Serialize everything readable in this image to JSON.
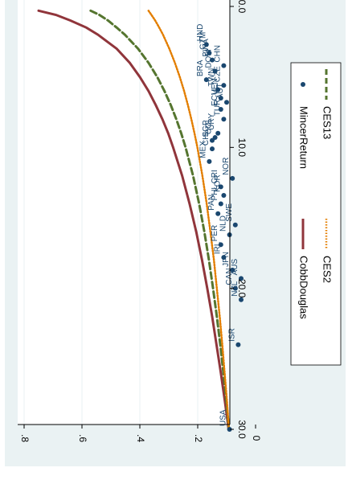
{
  "chart_data": {
    "type": "scatter",
    "orientation": "rotated-90-clockwise",
    "title": "",
    "xlabel": "",
    "ylabel": "",
    "xlim": [
      0,
      31
    ],
    "ylim": [
      0,
      0.83
    ],
    "x_ticks": [
      "0.0",
      "10.0",
      "20.0",
      "30.0"
    ],
    "y_ticks": [
      "0",
      ".2",
      ".4",
      ".6",
      ".8"
    ],
    "x_tick_values": [
      0,
      10,
      20,
      30
    ],
    "y_tick_values": [
      0,
      0.2,
      0.4,
      0.6,
      0.8
    ],
    "grid": "horizontal-gridlines",
    "legend_position": "right",
    "legend": [
      {
        "label": "MincerReturn",
        "style": "dot"
      },
      {
        "label": "CobbDouglas",
        "style": "solid"
      },
      {
        "label": "CES13",
        "style": "dashed"
      },
      {
        "label": "CES2",
        "style": "dotted"
      }
    ],
    "colors": {
      "outer_bg": "#eaf2f3",
      "plot_bg": "#ffffff",
      "mincer": "#1a476f",
      "cobbdouglas": "#90353b",
      "ces13": "#55752f",
      "ces2": "#e37e00",
      "grid": "#eaf2f3",
      "axis": "#000000"
    },
    "series": [
      {
        "name": "MincerReturn",
        "kind": "scatter",
        "points": [
          {
            "x": 2.7,
            "y": 0.17,
            "label": "HND"
          },
          {
            "x": 3.3,
            "y": 0.16,
            "label": "GTM"
          },
          {
            "x": 3.8,
            "y": 0.15,
            "label": "BWA"
          },
          {
            "x": 4.6,
            "y": 0.14,
            "label": "DOM"
          },
          {
            "x": 5.2,
            "y": 0.17,
            "label": "BRA"
          },
          {
            "x": 5.6,
            "y": 0.11,
            "label": "CZE"
          },
          {
            "x": 4.2,
            "y": 0.11,
            "label": "CHN"
          },
          {
            "x": 5.9,
            "y": 0.13,
            "label": "TWN"
          },
          {
            "x": 6.8,
            "y": 0.1,
            "label": "AUT"
          },
          {
            "x": 6.5,
            "y": 0.12,
            "label": "VEN"
          },
          {
            "x": 7.3,
            "y": 0.12,
            "label": "ECU"
          },
          {
            "x": 8.0,
            "y": 0.11,
            "label": "TUR"
          },
          {
            "x": 9.0,
            "y": 0.13,
            "label": "URY"
          },
          {
            "x": 9.3,
            "y": 0.14,
            "label": "COL"
          },
          {
            "x": 9.5,
            "y": 0.15,
            "label": "SGP"
          },
          {
            "x": 10.1,
            "y": 0.15,
            "label": "CHL"
          },
          {
            "x": 11.0,
            "y": 0.16,
            "label": "MEX"
          },
          {
            "x": 12.2,
            "y": 0.08,
            "label": "NOR"
          },
          {
            "x": 12.8,
            "y": 0.12,
            "label": "CRI"
          },
          {
            "x": 13.4,
            "y": 0.11,
            "label": "KOR"
          },
          {
            "x": 14.0,
            "y": 0.12,
            "label": "PHL"
          },
          {
            "x": 14.7,
            "y": 0.13,
            "label": "PAN"
          },
          {
            "x": 15.5,
            "y": 0.07,
            "label": "SWE"
          },
          {
            "x": 16.2,
            "y": 0.09,
            "label": "NLD"
          },
          {
            "x": 16.9,
            "y": 0.12,
            "label": "PER"
          },
          {
            "x": 17.8,
            "y": 0.11,
            "label": "IRL"
          },
          {
            "x": 18.7,
            "y": 0.08,
            "label": "JPN"
          },
          {
            "x": 19.3,
            "y": 0.05,
            "label": "AUS"
          },
          {
            "x": 20.0,
            "y": 0.07,
            "label": "CAN"
          },
          {
            "x": 20.8,
            "y": 0.05,
            "label": "NZL"
          },
          {
            "x": 24.0,
            "y": 0.06,
            "label": "ISR"
          },
          {
            "x": 30.0,
            "y": 0.09,
            "label": "USA"
          }
        ]
      },
      {
        "name": "CobbDouglas",
        "kind": "line",
        "x": [
          0.3,
          0.6,
          1,
          1.5,
          2,
          3,
          4,
          5,
          6,
          7,
          8,
          9,
          10,
          12,
          14,
          16,
          18,
          20,
          22,
          24,
          26,
          28,
          30
        ],
        "y": [
          0.75,
          0.69,
          0.64,
          0.585,
          0.545,
          0.48,
          0.435,
          0.4,
          0.37,
          0.345,
          0.322,
          0.302,
          0.285,
          0.254,
          0.228,
          0.205,
          0.185,
          0.167,
          0.15,
          0.135,
          0.12,
          0.106,
          0.093
        ]
      },
      {
        "name": "CES13",
        "kind": "line",
        "x": [
          0.3,
          0.6,
          1,
          1.5,
          2,
          3,
          4,
          5,
          6,
          7,
          8,
          9,
          10,
          12,
          14,
          16,
          18,
          20,
          22,
          24,
          26,
          28,
          30
        ],
        "y": [
          0.57,
          0.54,
          0.51,
          0.48,
          0.452,
          0.406,
          0.37,
          0.34,
          0.315,
          0.293,
          0.274,
          0.257,
          0.242,
          0.216,
          0.195,
          0.177,
          0.161,
          0.147,
          0.134,
          0.122,
          0.111,
          0.101,
          0.092
        ]
      },
      {
        "name": "CES2",
        "kind": "line",
        "x": [
          0.3,
          0.6,
          1,
          1.5,
          2,
          3,
          4,
          5,
          6,
          7,
          8,
          9,
          10,
          12,
          14,
          16,
          18,
          20,
          22,
          24,
          26,
          28,
          30
        ],
        "y": [
          0.37,
          0.36,
          0.347,
          0.333,
          0.32,
          0.298,
          0.279,
          0.262,
          0.247,
          0.234,
          0.222,
          0.211,
          0.201,
          0.184,
          0.169,
          0.156,
          0.144,
          0.134,
          0.124,
          0.115,
          0.107,
          0.099,
          0.092
        ]
      }
    ]
  }
}
